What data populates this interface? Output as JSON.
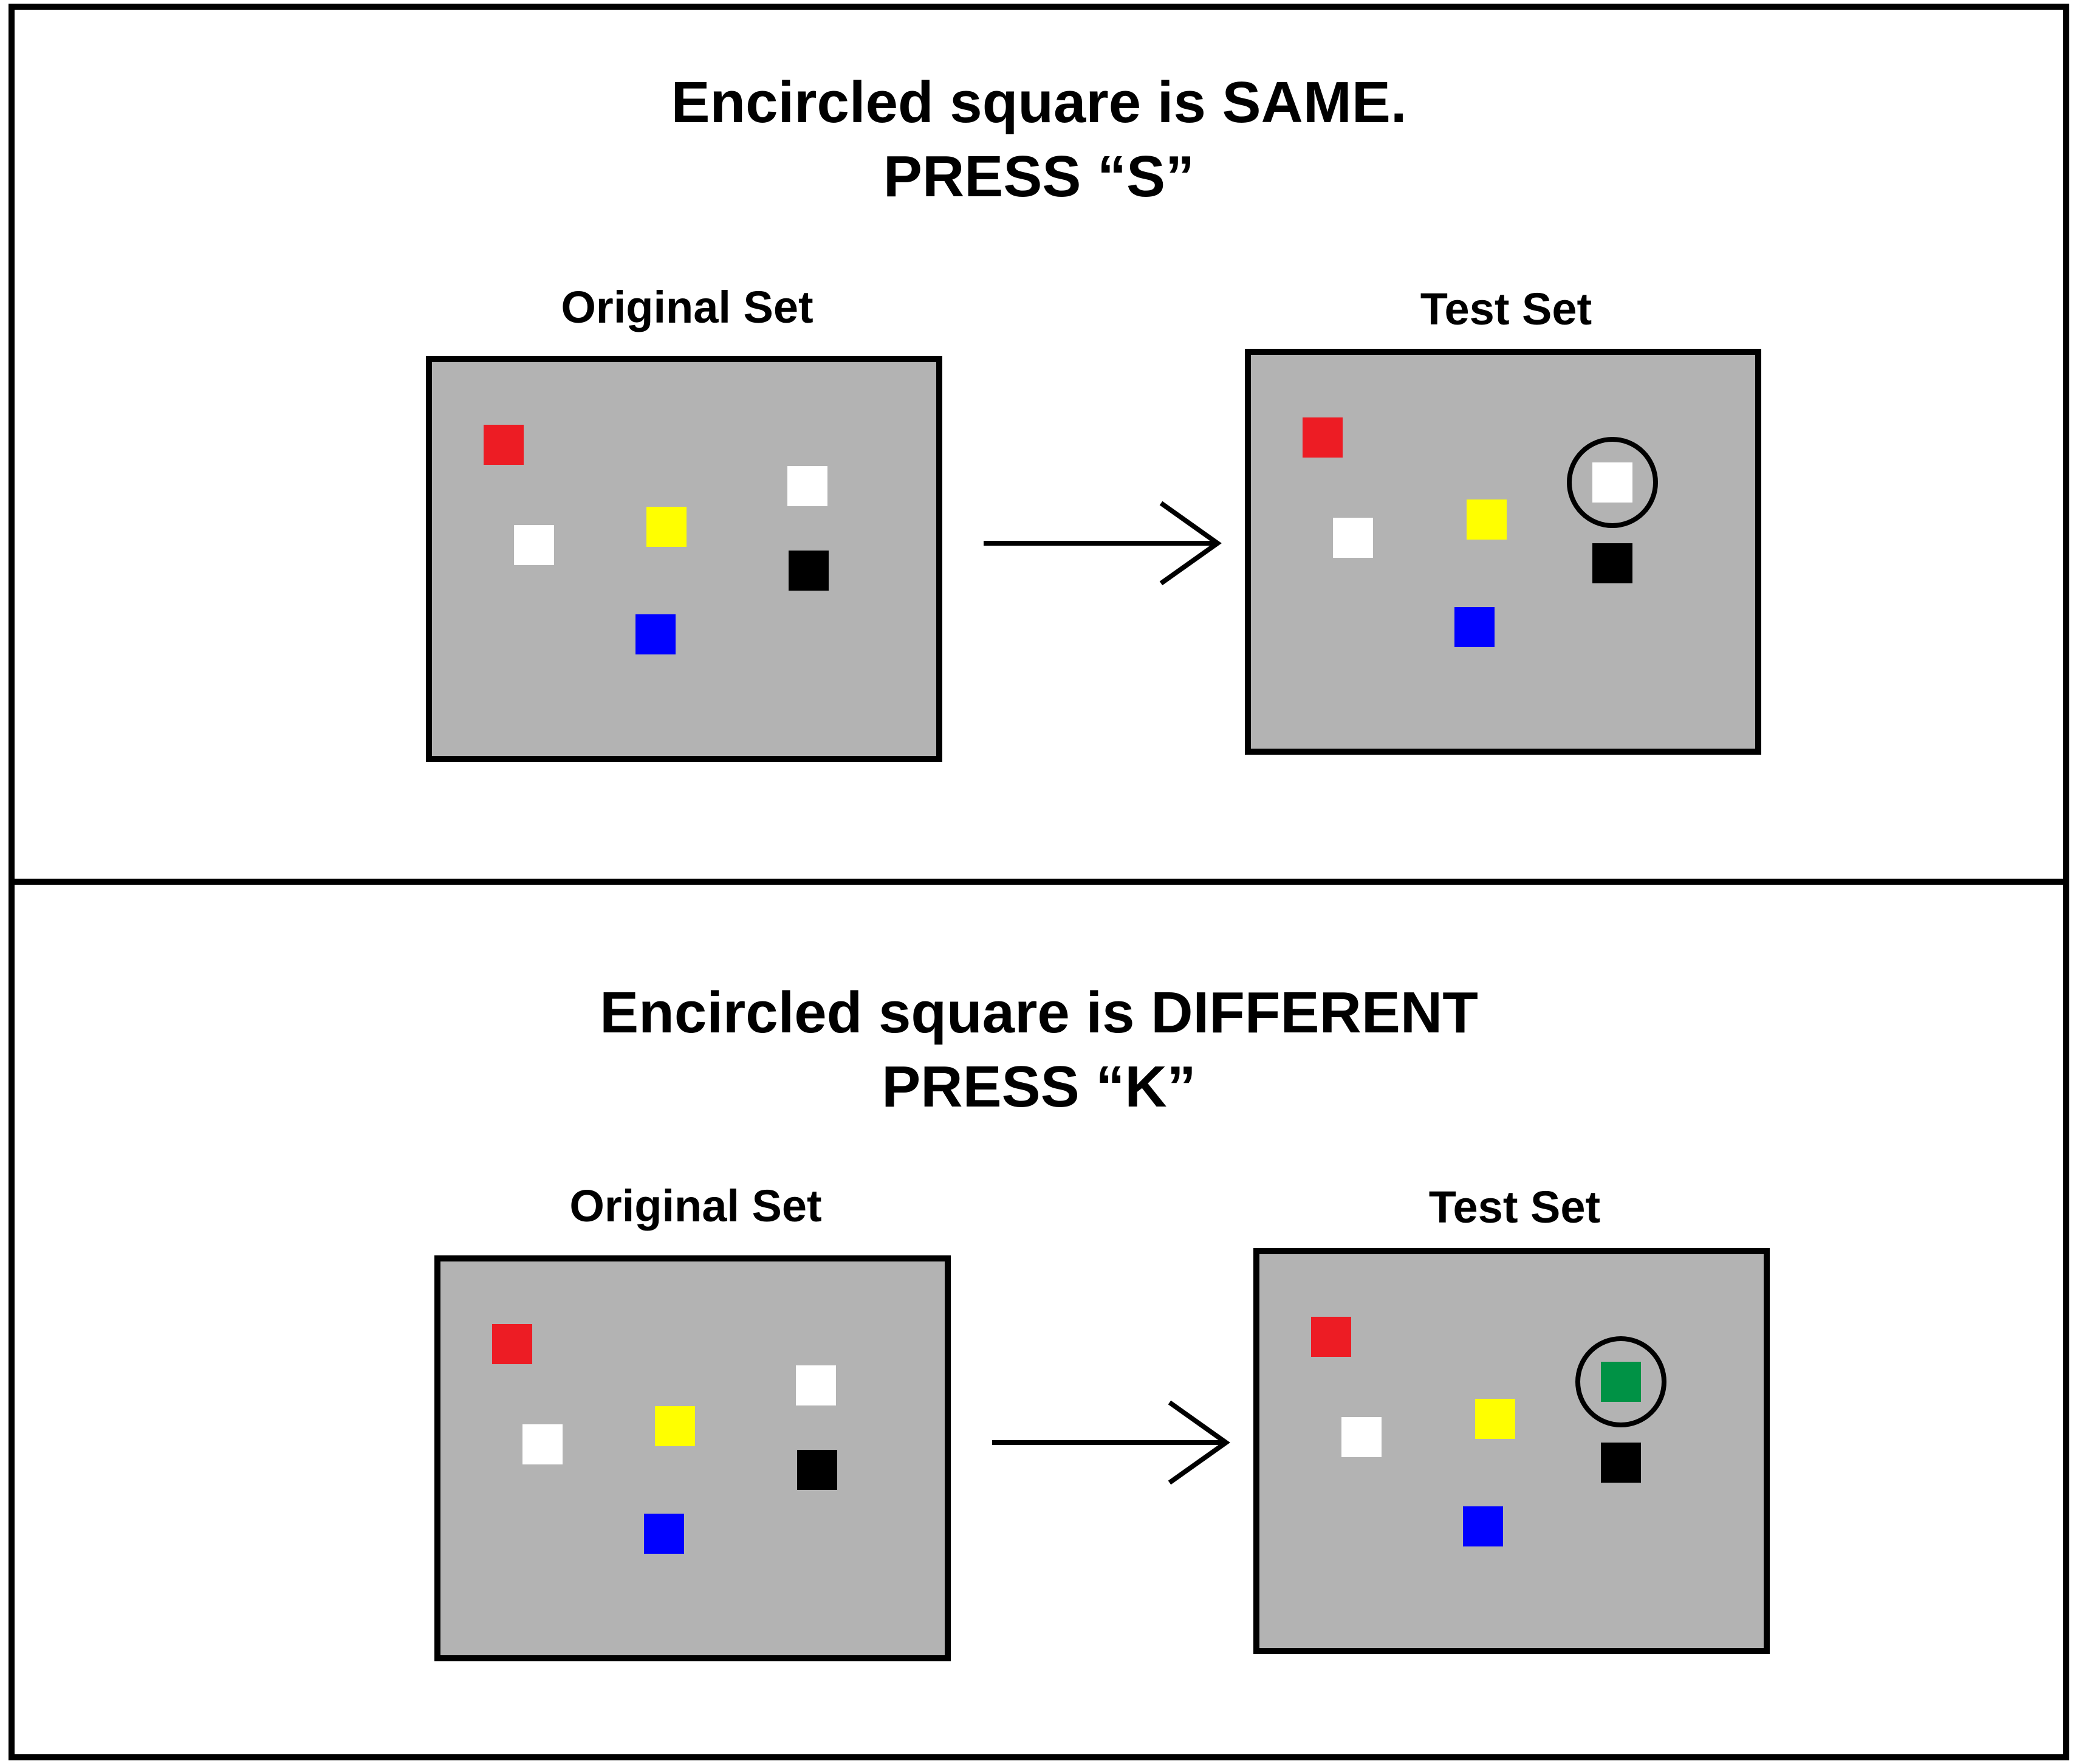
{
  "panels": [
    {
      "heading_line1": "Encircled square is SAME.",
      "heading_line2": "PRESS “S”",
      "original_label": "Original Set",
      "test_label": "Test Set",
      "probe_color": "#ffffff",
      "probe_color_name": "white"
    },
    {
      "heading_line1": "Encircled square is DIFFERENT",
      "heading_line2": "PRESS “K”",
      "original_label": "Original Set",
      "test_label": "Test Set",
      "probe_color": "#009245",
      "probe_color_name": "green"
    }
  ],
  "colors": {
    "red": "#ed1c24",
    "yellow": "#ffff00",
    "white": "#ffffff",
    "black": "#000000",
    "blue": "#0000ff",
    "green": "#009245",
    "screen_background": "#b3b3b3"
  },
  "icons": {
    "arrow": "right-arrow-icon",
    "probe_marker": "circle-outline"
  }
}
